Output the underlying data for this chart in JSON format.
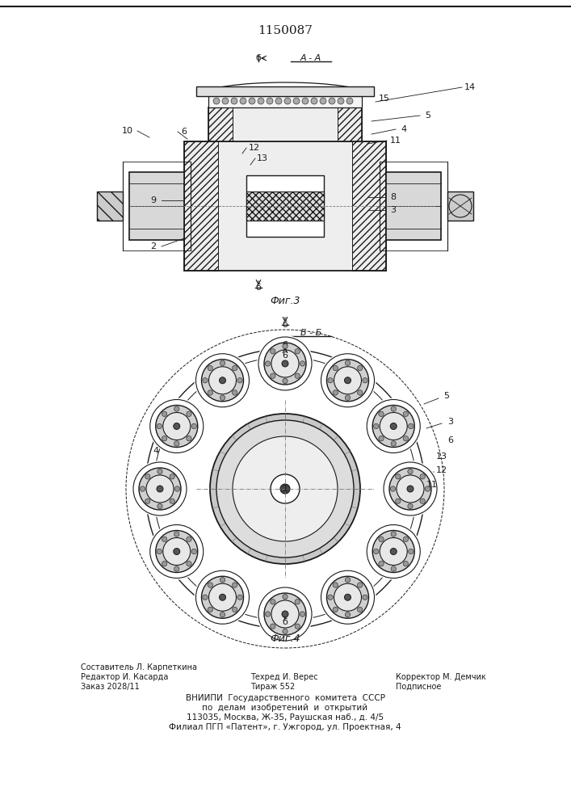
{
  "patent_number": "1150087",
  "bg_color": "#ffffff",
  "line_color": "#1a1a1a",
  "fig3_title": "Фиг.3",
  "fig4_title": "Фиг.4",
  "footer_col1_line1": "Редактор И. Касарда",
  "footer_col1_line2": "Заказ 2028/11",
  "footer_col2_line0": "Составитель Л. Карпеткина",
  "footer_col2_line1": "Техред И. Верес",
  "footer_col2_line2": "Тираж 552",
  "footer_col3_line1": "Корректор М. Демчик",
  "footer_col3_line2": "Подписное",
  "footer_vniipи1": "ВНИИПИ  Государственного  комитета  СССР",
  "footer_vniipи2": "по  делам  изобретений  и  открытий",
  "footer_vniipи3": "113035, Москва, Ж-35, Раушская наб., д. 4/5",
  "footer_vniipи4": "Филиал ПГП «Патент», г. Ужгород, ул. Проектная, 4"
}
